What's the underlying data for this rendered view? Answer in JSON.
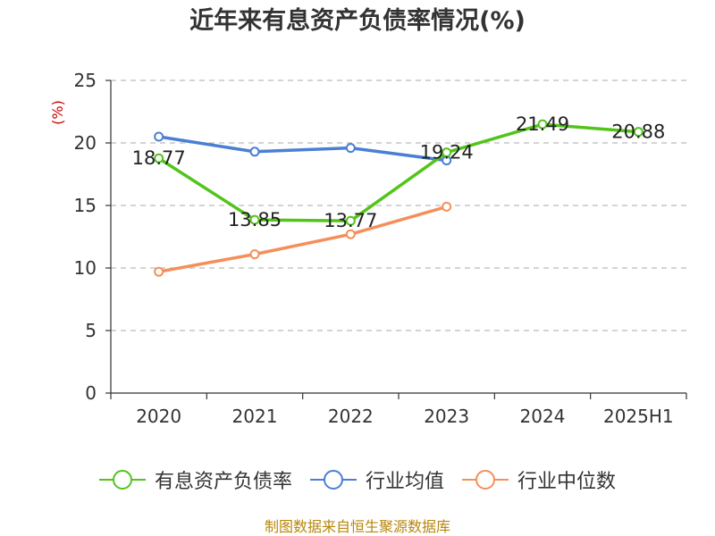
{
  "chart_data": {
    "type": "line",
    "title": "近年来有息资产负债率情况(%)",
    "ylabel": "(%)",
    "xlabel": "",
    "categories": [
      "2020",
      "2021",
      "2022",
      "2023",
      "2024",
      "2025H1"
    ],
    "ylim": [
      0,
      25
    ],
    "yticks": [
      0,
      5,
      10,
      15,
      20,
      25
    ],
    "grid": true,
    "legend_position": "bottom",
    "series": [
      {
        "name": "有息资产负债率",
        "color": "#52c41a",
        "values": [
          18.77,
          13.85,
          13.77,
          19.24,
          21.49,
          20.88
        ],
        "labels": [
          "18.77",
          "13.85",
          "13.77",
          "19.24",
          "21.49",
          "20.88"
        ]
      },
      {
        "name": "行业均值",
        "color": "#4a7fd4",
        "values": [
          20.5,
          19.3,
          19.6,
          18.6,
          null,
          null
        ]
      },
      {
        "name": "行业中位数",
        "color": "#f58f5a",
        "values": [
          9.7,
          11.1,
          12.7,
          14.9,
          null,
          null
        ]
      }
    ]
  },
  "source": "制图数据来自恒生聚源数据库"
}
